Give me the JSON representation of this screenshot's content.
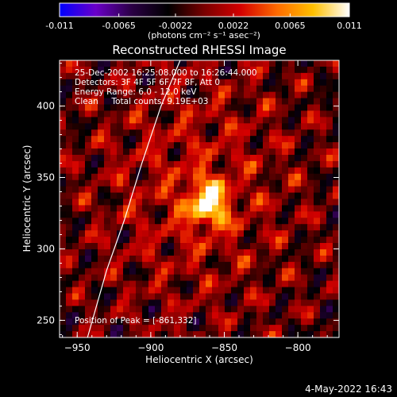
{
  "chart_data": {
    "type": "heatmap",
    "title": "Reconstructed RHESSI Image",
    "xlabel": "Heliocentric X (arcsec)",
    "ylabel": "Heliocentric Y (arcsec)",
    "xlim": [
      -962,
      -772
    ],
    "ylim": [
      238,
      432
    ],
    "xticks": [
      -950,
      -900,
      -850,
      -800
    ],
    "yticks": [
      250,
      300,
      350,
      400
    ],
    "colorbar": {
      "min": -0.011,
      "max": 0.011,
      "ticks": [
        -0.011,
        -0.0065,
        -0.0022,
        0.0022,
        0.0065,
        0.011
      ],
      "tick_labels": [
        "-0.011",
        "-0.0065",
        "-0.0022",
        "0.0022",
        "0.0065",
        "0.011"
      ],
      "label": "(photons cm⁻² s⁻¹ asec⁻²)",
      "colors": [
        "#0000ff",
        "#6a00c8",
        "#2a0044",
        "#000000",
        "#7a0000",
        "#d40000",
        "#ff6a00",
        "#ffc000",
        "#ffffff"
      ]
    },
    "annotations": [
      "25-Dec-2002 16:25:08.000 to 16:26:44.000",
      "Detectors: 3F 4F 5F 6F 7F 8F, Att 0",
      "Energy Range: 6.0 - 12.0 keV",
      "Clean     Total counts: 9.19E+03"
    ],
    "peak_label": "Position of Peak = [-861,332]",
    "peak": {
      "x": -861,
      "y": 332
    },
    "limb_curve": [
      [
        -943,
        238
      ],
      [
        -930,
        285
      ],
      [
        -918,
        320
      ],
      [
        -906,
        360
      ],
      [
        -893,
        400
      ],
      [
        -880,
        432
      ]
    ]
  },
  "footer": {
    "date": "4-May-2022 16:43"
  }
}
